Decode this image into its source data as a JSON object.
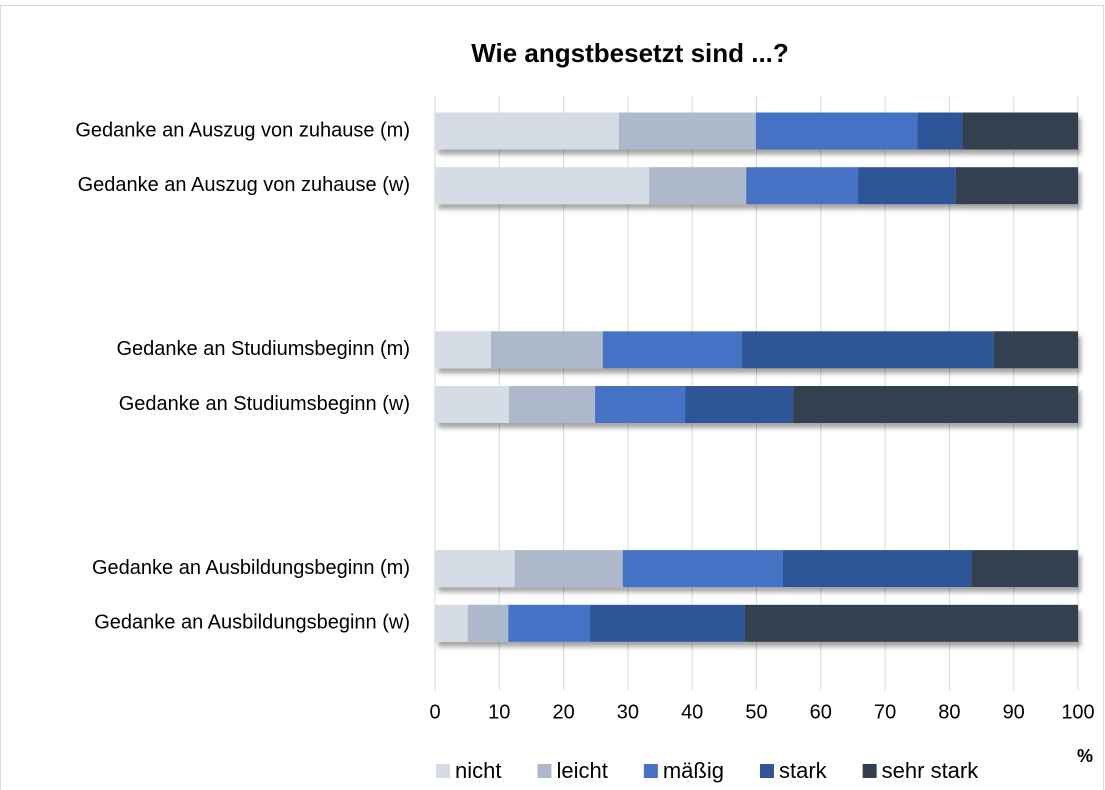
{
  "chart_data": {
    "type": "stacked-bar-horizontal",
    "title": "Wie angstbesetzt sind ...?",
    "x_label": "%",
    "categories": [
      "Gedanke an Auszug von zuhause (m)",
      "Gedanke an Auszug von zuhause (w)",
      null,
      null,
      "Gedanke an Studiumsbeginn (m)",
      "Gedanke an Studiumsbeginn (w)",
      null,
      null,
      "Gedanke an Ausbildungsbeginn (m)",
      "Gedanke an Ausbildungsbeginn (w)"
    ],
    "series": [
      {
        "name": "nicht",
        "color": "#d6dce5",
        "values": [
          28.6,
          33.3,
          null,
          null,
          8.7,
          11.5,
          null,
          null,
          12.4,
          5.1
        ]
      },
      {
        "name": "leicht",
        "color": "#adb9ca",
        "values": [
          21.3,
          15.1,
          null,
          null,
          17.4,
          13.4,
          null,
          null,
          16.8,
          6.3
        ]
      },
      {
        "name": "mäßig",
        "color": "#4472c4",
        "values": [
          25.1,
          17.4,
          null,
          null,
          21.6,
          14.0,
          null,
          null,
          24.9,
          12.7
        ]
      },
      {
        "name": "stark",
        "color": "#2f5597",
        "values": [
          7.0,
          15.2,
          null,
          null,
          39.2,
          16.8,
          null,
          null,
          29.3,
          24.1
        ]
      },
      {
        "name": "sehr stark",
        "color": "#333f50",
        "values": [
          18.0,
          19.0,
          null,
          null,
          13.1,
          44.3,
          null,
          null,
          16.6,
          51.8
        ]
      }
    ],
    "xlim": [
      0,
      100
    ],
    "xticks": [
      0,
      10,
      20,
      30,
      40,
      50,
      60,
      70,
      80,
      90,
      100
    ],
    "grid": true,
    "legend": "bottom"
  }
}
